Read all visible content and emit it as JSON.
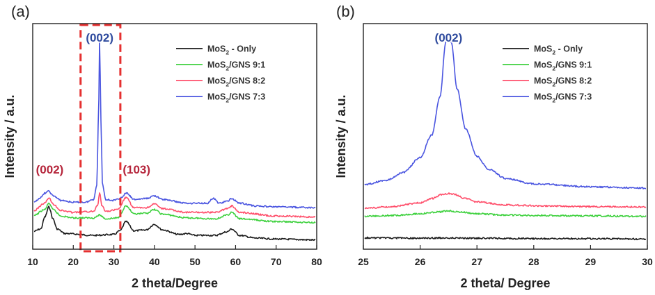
{
  "chart_data": [
    {
      "panel_label": "(a)",
      "type": "line",
      "xlabel": "2 theta/Degree",
      "ylabel": "Intensity / a.u.",
      "xlim": [
        10,
        80
      ],
      "xticks": [
        "10",
        "20",
        "30",
        "40",
        "50",
        "60",
        "70",
        "80"
      ],
      "yticks_shown": false,
      "grid": false,
      "legend_position": "top-right",
      "series": [
        {
          "legend": [
            "MoS",
            "2",
            " - Only"
          ],
          "color": "#1a1a1a",
          "x": [
            10,
            12,
            13,
            14,
            15,
            16,
            18,
            25,
            30,
            31.5,
            33,
            35,
            38,
            40,
            42,
            46,
            48,
            50,
            55,
            58,
            59,
            61,
            65,
            70,
            80
          ],
          "y": [
            0.19,
            0.22,
            0.35,
            0.46,
            0.33,
            0.22,
            0.17,
            0.15,
            0.16,
            0.2,
            0.3,
            0.2,
            0.21,
            0.27,
            0.21,
            0.16,
            0.17,
            0.15,
            0.15,
            0.19,
            0.22,
            0.15,
            0.12,
            0.11,
            0.1
          ]
        },
        {
          "legend": [
            "MoS",
            "2",
            "/GNS 9:1"
          ],
          "color": "#3fd13f",
          "x": [
            10,
            13,
            14,
            15,
            17,
            20,
            25,
            26.5,
            28,
            31,
            33,
            35,
            38,
            40,
            42,
            48,
            55,
            58,
            59,
            61,
            70,
            80
          ],
          "y": [
            0.36,
            0.43,
            0.5,
            0.43,
            0.36,
            0.34,
            0.34,
            0.37,
            0.33,
            0.34,
            0.47,
            0.38,
            0.39,
            0.43,
            0.38,
            0.34,
            0.33,
            0.37,
            0.4,
            0.33,
            0.3,
            0.29
          ]
        },
        {
          "legend": [
            "MoS",
            "2",
            "/GNS 8:2"
          ],
          "color": "#ff4f6b",
          "x": [
            10,
            13,
            14,
            15,
            17,
            20,
            25,
            26,
            26.5,
            27,
            28,
            31,
            33,
            35,
            38,
            40,
            42,
            48,
            55,
            58,
            59,
            61,
            70,
            80
          ],
          "y": [
            0.41,
            0.5,
            0.56,
            0.49,
            0.42,
            0.4,
            0.41,
            0.48,
            0.62,
            0.48,
            0.41,
            0.43,
            0.56,
            0.45,
            0.45,
            0.49,
            0.44,
            0.4,
            0.4,
            0.44,
            0.47,
            0.4,
            0.36,
            0.35
          ]
        },
        {
          "legend": [
            "MoS",
            "2",
            "/GNS 7:3"
          ],
          "color": "#4a55e0",
          "x": [
            10,
            12,
            13,
            14,
            15,
            17,
            20,
            23,
            25,
            25.8,
            26.2,
            26.5,
            26.8,
            27.2,
            28,
            30,
            32,
            33,
            35,
            38,
            40,
            42,
            48,
            53,
            54.5,
            56,
            58,
            59,
            61,
            65,
            70,
            80
          ],
          "y": [
            0.5,
            0.56,
            0.61,
            0.63,
            0.58,
            0.53,
            0.51,
            0.51,
            0.54,
            0.7,
            1.4,
            2.3,
            1.4,
            0.7,
            0.54,
            0.53,
            0.56,
            0.61,
            0.54,
            0.55,
            0.58,
            0.54,
            0.5,
            0.5,
            0.55,
            0.5,
            0.52,
            0.55,
            0.5,
            0.47,
            0.46,
            0.45
          ]
        }
      ],
      "annotations": [
        {
          "text": "(002)",
          "x": 14.2,
          "color": "#b5253b"
        },
        {
          "text": "(002)",
          "x": 26.5,
          "color": "#2f4b9e"
        },
        {
          "text": "(103)",
          "x": 35.6,
          "color": "#b5253b"
        }
      ],
      "highlight_box": {
        "x_range": [
          21.8,
          31.6
        ],
        "style": "dashed",
        "color": "#e53030"
      }
    },
    {
      "panel_label": "(b)",
      "type": "line",
      "xlabel": "2 theta/ Degree",
      "ylabel": "Intensity / a.u.",
      "xlim": [
        25,
        30
      ],
      "xticks": [
        "25",
        "26",
        "27",
        "28",
        "29",
        "30"
      ],
      "yticks_shown": false,
      "grid": false,
      "legend_position": "top-right",
      "series": [
        {
          "legend": [
            "MoS",
            "2",
            " - Only"
          ],
          "color": "#1a1a1a",
          "x": [
            25,
            26,
            26.5,
            27,
            28,
            29,
            30
          ],
          "y": [
            0.27,
            0.26,
            0.27,
            0.26,
            0.25,
            0.25,
            0.24
          ]
        },
        {
          "legend": [
            "MoS",
            "2",
            "/GNS 9:1"
          ],
          "color": "#3fd13f",
          "x": [
            25,
            25.5,
            26,
            26.3,
            26.5,
            26.7,
            27,
            27.5,
            28,
            29,
            30
          ],
          "y": [
            0.78,
            0.8,
            0.84,
            0.88,
            0.91,
            0.88,
            0.84,
            0.81,
            0.8,
            0.79,
            0.78
          ]
        },
        {
          "legend": [
            "MoS",
            "2",
            "/GNS 8:2"
          ],
          "color": "#ff4f6b",
          "x": [
            25,
            25.5,
            26,
            26.2,
            26.4,
            26.5,
            26.6,
            26.8,
            27,
            27.5,
            28,
            29,
            30
          ],
          "y": [
            0.97,
            1.01,
            1.1,
            1.2,
            1.3,
            1.32,
            1.3,
            1.2,
            1.12,
            1.05,
            1.03,
            1.01,
            1.0
          ]
        },
        {
          "legend": [
            "MoS",
            "2",
            "/GNS 7:3"
          ],
          "color": "#4a55e0",
          "x": [
            25,
            25.4,
            25.7,
            26,
            26.2,
            26.35,
            26.45,
            26.5,
            26.55,
            26.65,
            26.8,
            27,
            27.2,
            27.5,
            28,
            29,
            30
          ],
          "y": [
            1.53,
            1.63,
            1.82,
            2.17,
            2.7,
            3.6,
            4.9,
            5.1,
            4.9,
            3.8,
            2.85,
            2.2,
            1.9,
            1.68,
            1.55,
            1.48,
            1.45
          ]
        }
      ],
      "annotations": [
        {
          "text": "(002)",
          "x": 26.5,
          "color": "#2f4b9e"
        }
      ]
    }
  ]
}
